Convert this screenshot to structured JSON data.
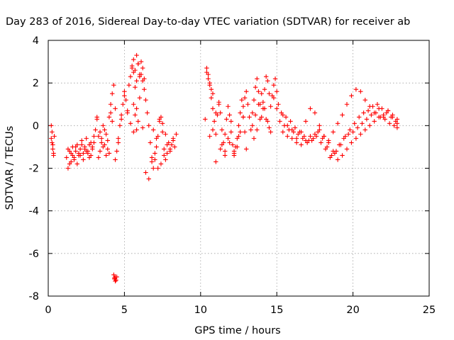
{
  "chart_data": {
    "type": "scatter",
    "title": "Day 283 of 2016, Sidereal Day-to-day VTEC variation (SDTVAR) for receiver ab",
    "xlabel": "GPS time / hours",
    "ylabel": "SDTVAR / TECUs",
    "xlim": [
      0,
      25
    ],
    "ylim": [
      -8,
      4
    ],
    "xticks": [
      "0",
      "5",
      "10",
      "15",
      "20",
      "25"
    ],
    "yticks": [
      "-8",
      "-6",
      "-4",
      "-2",
      "0",
      "2",
      "4"
    ],
    "grid": true,
    "marker": "plus",
    "color": "#ff0000",
    "series": [
      {
        "x": [
          0.2,
          0.25,
          0.3,
          0.35,
          0.4,
          0.2,
          0.3,
          0.25,
          0.35,
          4.3,
          4.35,
          4.4,
          4.45,
          4.5,
          4.4,
          4.35,
          1.2,
          1.3,
          1.4,
          1.5,
          1.6,
          1.7,
          1.8,
          1.9,
          2.0,
          2.1,
          2.2,
          2.3,
          2.4,
          2.5,
          2.6,
          2.7,
          2.8,
          2.9,
          3.0,
          1.3,
          1.5,
          1.7,
          1.9,
          2.1,
          2.3,
          2.5,
          2.7,
          2.9,
          1.4,
          1.6,
          1.8,
          2.0,
          2.2,
          2.4,
          2.6,
          2.8,
          3.0,
          3.1,
          3.2,
          3.3,
          3.4,
          3.5,
          3.6,
          3.7,
          3.8,
          3.9,
          4.0,
          4.1,
          4.2,
          4.3,
          4.4,
          3.2,
          3.4,
          3.6,
          3.8,
          4.0,
          4.2,
          3.3,
          3.5,
          3.7,
          3.9,
          4.1,
          4.4,
          4.5,
          4.6,
          4.7,
          4.8,
          4.9,
          5.0,
          5.1,
          5.2,
          5.3,
          5.4,
          5.5,
          5.6,
          5.7,
          5.8,
          5.9,
          6.0,
          4.6,
          4.8,
          5.0,
          5.2,
          5.4,
          5.6,
          5.8,
          6.0,
          6.2,
          5.5,
          5.6,
          5.7,
          5.8,
          5.9,
          6.0,
          6.1,
          6.2,
          6.3,
          5.6,
          5.7,
          5.8,
          5.9,
          6.1,
          6.2,
          6.3,
          6.4,
          6.5,
          6.6,
          6.7,
          6.8,
          6.9,
          7.0,
          7.1,
          7.2,
          7.3,
          7.4,
          7.5,
          7.6,
          7.7,
          7.8,
          7.9,
          8.0,
          8.1,
          8.2,
          8.3,
          8.4,
          6.4,
          6.6,
          6.8,
          7.0,
          7.2,
          7.4,
          7.6,
          7.8,
          8.0,
          8.2,
          6.9,
          7.1,
          7.3,
          7.5,
          7.7,
          10.3,
          10.4,
          10.5,
          10.6,
          10.7,
          10.8,
          10.9,
          11.0,
          11.1,
          11.2,
          11.3,
          11.4,
          11.5,
          11.6,
          11.7,
          11.8,
          11.9,
          12.0,
          12.1,
          12.2,
          12.3,
          12.4,
          12.5,
          12.6,
          12.7,
          12.8,
          12.9,
          13.0,
          10.4,
          10.5,
          10.6,
          10.7,
          10.8,
          10.6,
          10.8,
          11.0,
          11.2,
          11.4,
          11.6,
          11.8,
          12.0,
          12.2,
          12.4,
          12.6,
          12.8,
          11.0,
          11.3,
          11.6,
          11.9,
          12.2,
          12.5,
          12.8,
          12.9,
          13.0,
          13.1,
          13.2,
          13.3,
          13.4,
          13.5,
          13.6,
          13.7,
          13.8,
          13.9,
          14.0,
          14.1,
          14.2,
          14.3,
          14.4,
          14.5,
          14.6,
          14.7,
          14.8,
          14.9,
          15.0,
          13.4,
          13.6,
          13.8,
          14.0,
          14.2,
          14.4,
          14.6,
          13.5,
          13.7,
          13.9,
          14.1,
          14.3,
          14.5,
          14.8,
          15.1,
          15.4,
          15.7,
          16.0,
          16.3,
          16.6,
          16.9,
          17.2,
          17.5,
          17.8,
          18.1,
          18.4,
          18.7,
          19.0,
          19.3,
          19.6,
          19.9,
          20.2,
          20.5,
          20.8,
          21.1,
          21.4,
          21.7,
          22.0,
          22.3,
          22.6,
          22.9,
          15.0,
          15.3,
          15.6,
          15.9,
          16.2,
          16.5,
          16.8,
          17.1,
          17.4,
          17.7,
          18.0,
          18.3,
          18.6,
          18.9,
          19.2,
          19.5,
          19.8,
          20.1,
          20.4,
          20.7,
          21.0,
          21.3,
          21.6,
          21.9,
          22.2,
          22.5,
          22.8,
          15.2,
          15.5,
          15.8,
          16.1,
          16.4,
          16.7,
          17.0,
          17.3,
          17.6,
          17.9,
          18.2,
          18.5,
          18.8,
          19.1,
          19.4,
          19.7,
          20.0,
          20.3,
          20.6,
          20.9,
          21.2,
          21.5,
          21.8,
          22.1,
          22.4,
          22.7,
          22.9,
          15.4,
          15.7,
          16.0,
          16.3,
          16.6,
          16.9,
          17.2,
          17.5,
          17.8,
          18.1,
          18.4,
          18.7,
          19.0,
          19.3,
          19.6,
          19.9,
          20.2,
          20.5,
          20.8,
          21.1,
          21.4,
          21.7,
          22.0,
          22.3,
          22.6,
          22.9
        ],
        "y": [
          -0.6,
          -0.3,
          -0.9,
          -1.3,
          -0.5,
          0.0,
          -1.1,
          -0.8,
          -1.4,
          -7.0,
          -7.2,
          -7.1,
          -7.25,
          -7.1,
          -7.3,
          -7.15,
          -1.5,
          -1.1,
          -1.8,
          -1.3,
          -1.0,
          -1.6,
          -1.2,
          -0.9,
          -1.4,
          -1.1,
          -0.7,
          -1.3,
          -1.0,
          -0.6,
          -1.2,
          -0.9,
          -1.4,
          -1.0,
          -0.5,
          -2.0,
          -1.7,
          -1.5,
          -1.8,
          -1.4,
          -1.6,
          -1.2,
          -1.5,
          -1.1,
          -1.2,
          -1.4,
          -1.0,
          -1.3,
          -0.9,
          -1.1,
          -1.3,
          -0.8,
          -0.8,
          -0.2,
          0.3,
          -0.5,
          -1.2,
          -0.6,
          0.0,
          -0.9,
          -1.4,
          -0.7,
          0.4,
          1.0,
          1.5,
          1.9,
          0.8,
          0.4,
          -0.3,
          -1.0,
          -0.4,
          -1.3,
          0.2,
          -1.5,
          -0.8,
          -0.2,
          -1.1,
          0.6,
          -1.6,
          -1.2,
          -0.6,
          0.0,
          0.5,
          1.0,
          1.6,
          1.2,
          0.7,
          1.9,
          2.3,
          2.7,
          2.5,
          1.8,
          2.1,
          2.9,
          2.3,
          -0.8,
          0.3,
          1.4,
          0.6,
          0.1,
          -0.3,
          0.8,
          1.3,
          -0.1,
          2.8,
          3.1,
          2.6,
          3.3,
          2.9,
          2.4,
          3.0,
          2.7,
          2.2,
          1.0,
          0.5,
          -0.2,
          0.2,
          2.4,
          2.1,
          1.7,
          1.2,
          0.6,
          0.0,
          -0.8,
          -1.5,
          -2.0,
          -1.6,
          -1.0,
          -0.5,
          0.2,
          0.4,
          -0.3,
          -1.1,
          -1.6,
          -1.3,
          -0.8,
          -1.2,
          -0.9,
          -0.6,
          -1.0,
          -0.4,
          -2.2,
          -2.5,
          -1.7,
          -1.3,
          -2.0,
          -1.8,
          -1.4,
          -0.9,
          -1.1,
          -0.7,
          -0.2,
          -0.6,
          0.3,
          0.1,
          -0.4,
          0.3,
          2.7,
          2.4,
          1.9,
          1.3,
          0.8,
          0.2,
          -0.4,
          0.5,
          1.1,
          0.6,
          -0.2,
          -0.8,
          -0.4,
          0.3,
          0.9,
          0.5,
          -0.3,
          -0.9,
          -1.3,
          -1.0,
          -0.6,
          0.0,
          0.6,
          1.2,
          0.4,
          -0.3,
          -1.1,
          2.5,
          2.2,
          2.0,
          1.7,
          1.5,
          -0.5,
          -0.2,
          0.6,
          1.0,
          -0.9,
          -1.2,
          -0.6,
          0.2,
          -1.4,
          -1.0,
          -0.3,
          0.4,
          -1.7,
          -1.1,
          -1.4,
          -0.8,
          -1.2,
          -0.5,
          0.9,
          1.3,
          1.6,
          1.0,
          0.4,
          -0.2,
          0.6,
          1.2,
          1.8,
          2.2,
          1.6,
          1.0,
          0.4,
          1.1,
          1.7,
          2.3,
          2.1,
          1.5,
          0.9,
          1.4,
          1.9,
          2.2,
          1.6,
          0.0,
          0.5,
          1.0,
          1.5,
          0.8,
          0.2,
          -0.3,
          -0.6,
          -0.2,
          0.3,
          0.8,
          0.3,
          -0.1,
          1.3,
          1.0,
          0.5,
          0.0,
          -0.2,
          -0.6,
          -0.3,
          0.2,
          0.8,
          0.6,
          0.0,
          -0.5,
          -0.7,
          -0.3,
          0.1,
          0.5,
          1.0,
          1.4,
          1.7,
          1.6,
          1.2,
          0.9,
          0.6,
          0.8,
          0.4,
          0.7,
          0.5,
          0.3,
          0.8,
          0.6,
          0.4,
          0.2,
          -0.1,
          -0.3,
          -0.5,
          -0.7,
          -0.6,
          -0.3,
          -0.6,
          -1.0,
          -1.4,
          -1.2,
          -0.9,
          -0.5,
          -0.2,
          0.1,
          0.4,
          0.6,
          0.7,
          0.9,
          1.0,
          0.8,
          0.6,
          0.4,
          0.2,
          0.2,
          0.0,
          -0.2,
          -0.3,
          -0.4,
          -0.6,
          -0.8,
          -0.7,
          -0.5,
          -0.8,
          -1.1,
          -1.5,
          -1.3,
          -0.9,
          -0.6,
          -0.4,
          -0.3,
          -0.1,
          0.1,
          0.3,
          0.5,
          0.6,
          0.4,
          0.3,
          0.1,
          0.0,
          -0.1,
          -0.3,
          -0.5,
          -0.6,
          -0.8,
          -0.9,
          -0.7,
          -0.5,
          -0.4,
          -0.2,
          -0.5,
          -0.8,
          -1.2,
          -1.6,
          -1.4,
          -1.1,
          -0.8,
          -0.6,
          -0.4,
          -0.2,
          0.0,
          0.2,
          0.4,
          0.5,
          0.7,
          0.4,
          0.1
        ]
      }
    ]
  }
}
